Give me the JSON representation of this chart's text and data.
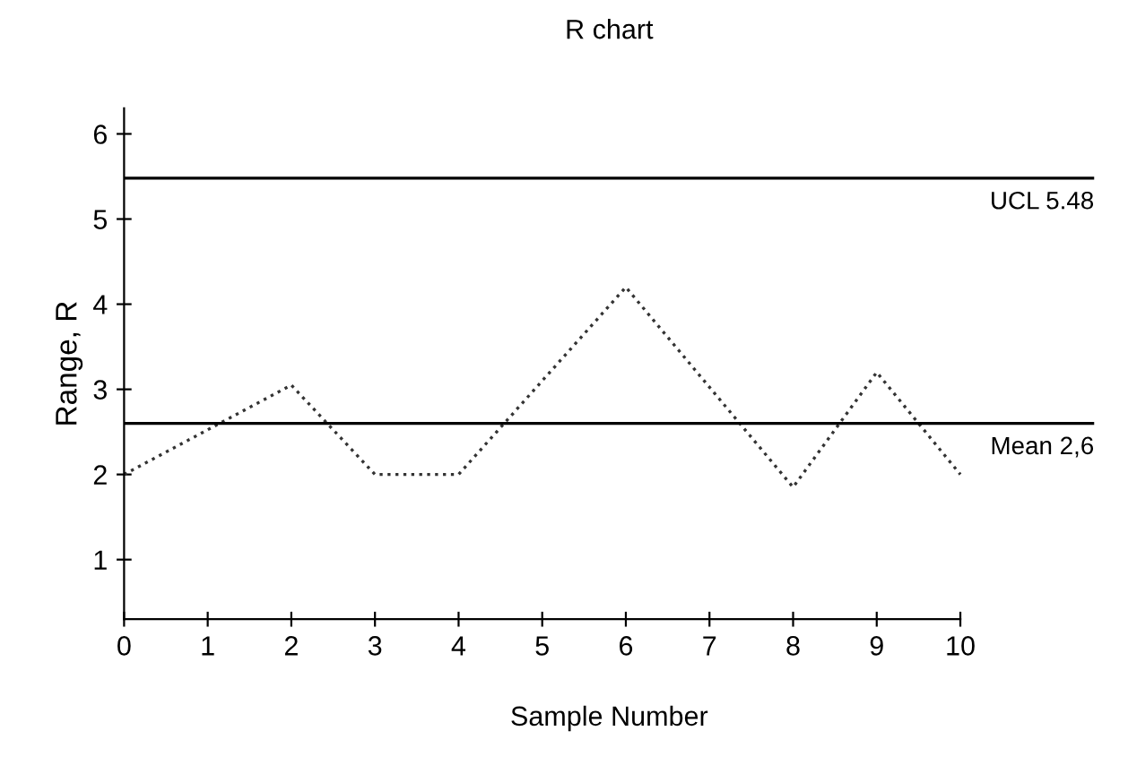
{
  "chart_data": {
    "type": "line",
    "title": "R chart",
    "xlabel": "Sample Number",
    "ylabel": "Range, R",
    "x": [
      0,
      2,
      3,
      4,
      6,
      8,
      9,
      10
    ],
    "series": [
      {
        "color": "#333333",
        "values": [
          2.0,
          3.05,
          2.0,
          2.0,
          4.2,
          1.85,
          3.2,
          2.0
        ]
      }
    ],
    "line_style": "dotted",
    "marker": "none",
    "grid": false,
    "legend": false,
    "xlim": [
      0,
      11.6
    ],
    "xticks": [
      0,
      1,
      2,
      3,
      4,
      5,
      6,
      7,
      8,
      9,
      10
    ],
    "ylim": [
      0.3,
      6.3
    ],
    "yticks": [
      1,
      2,
      3,
      4,
      5,
      6
    ],
    "ref_lines": [
      {
        "axis": "y",
        "value": 5.48,
        "label": "UCL 5.48",
        "color": "#000000",
        "line_style": "solid"
      },
      {
        "axis": "y",
        "value": 2.6,
        "label": "Mean 2,6",
        "color": "#000000",
        "line_style": "solid"
      }
    ]
  }
}
